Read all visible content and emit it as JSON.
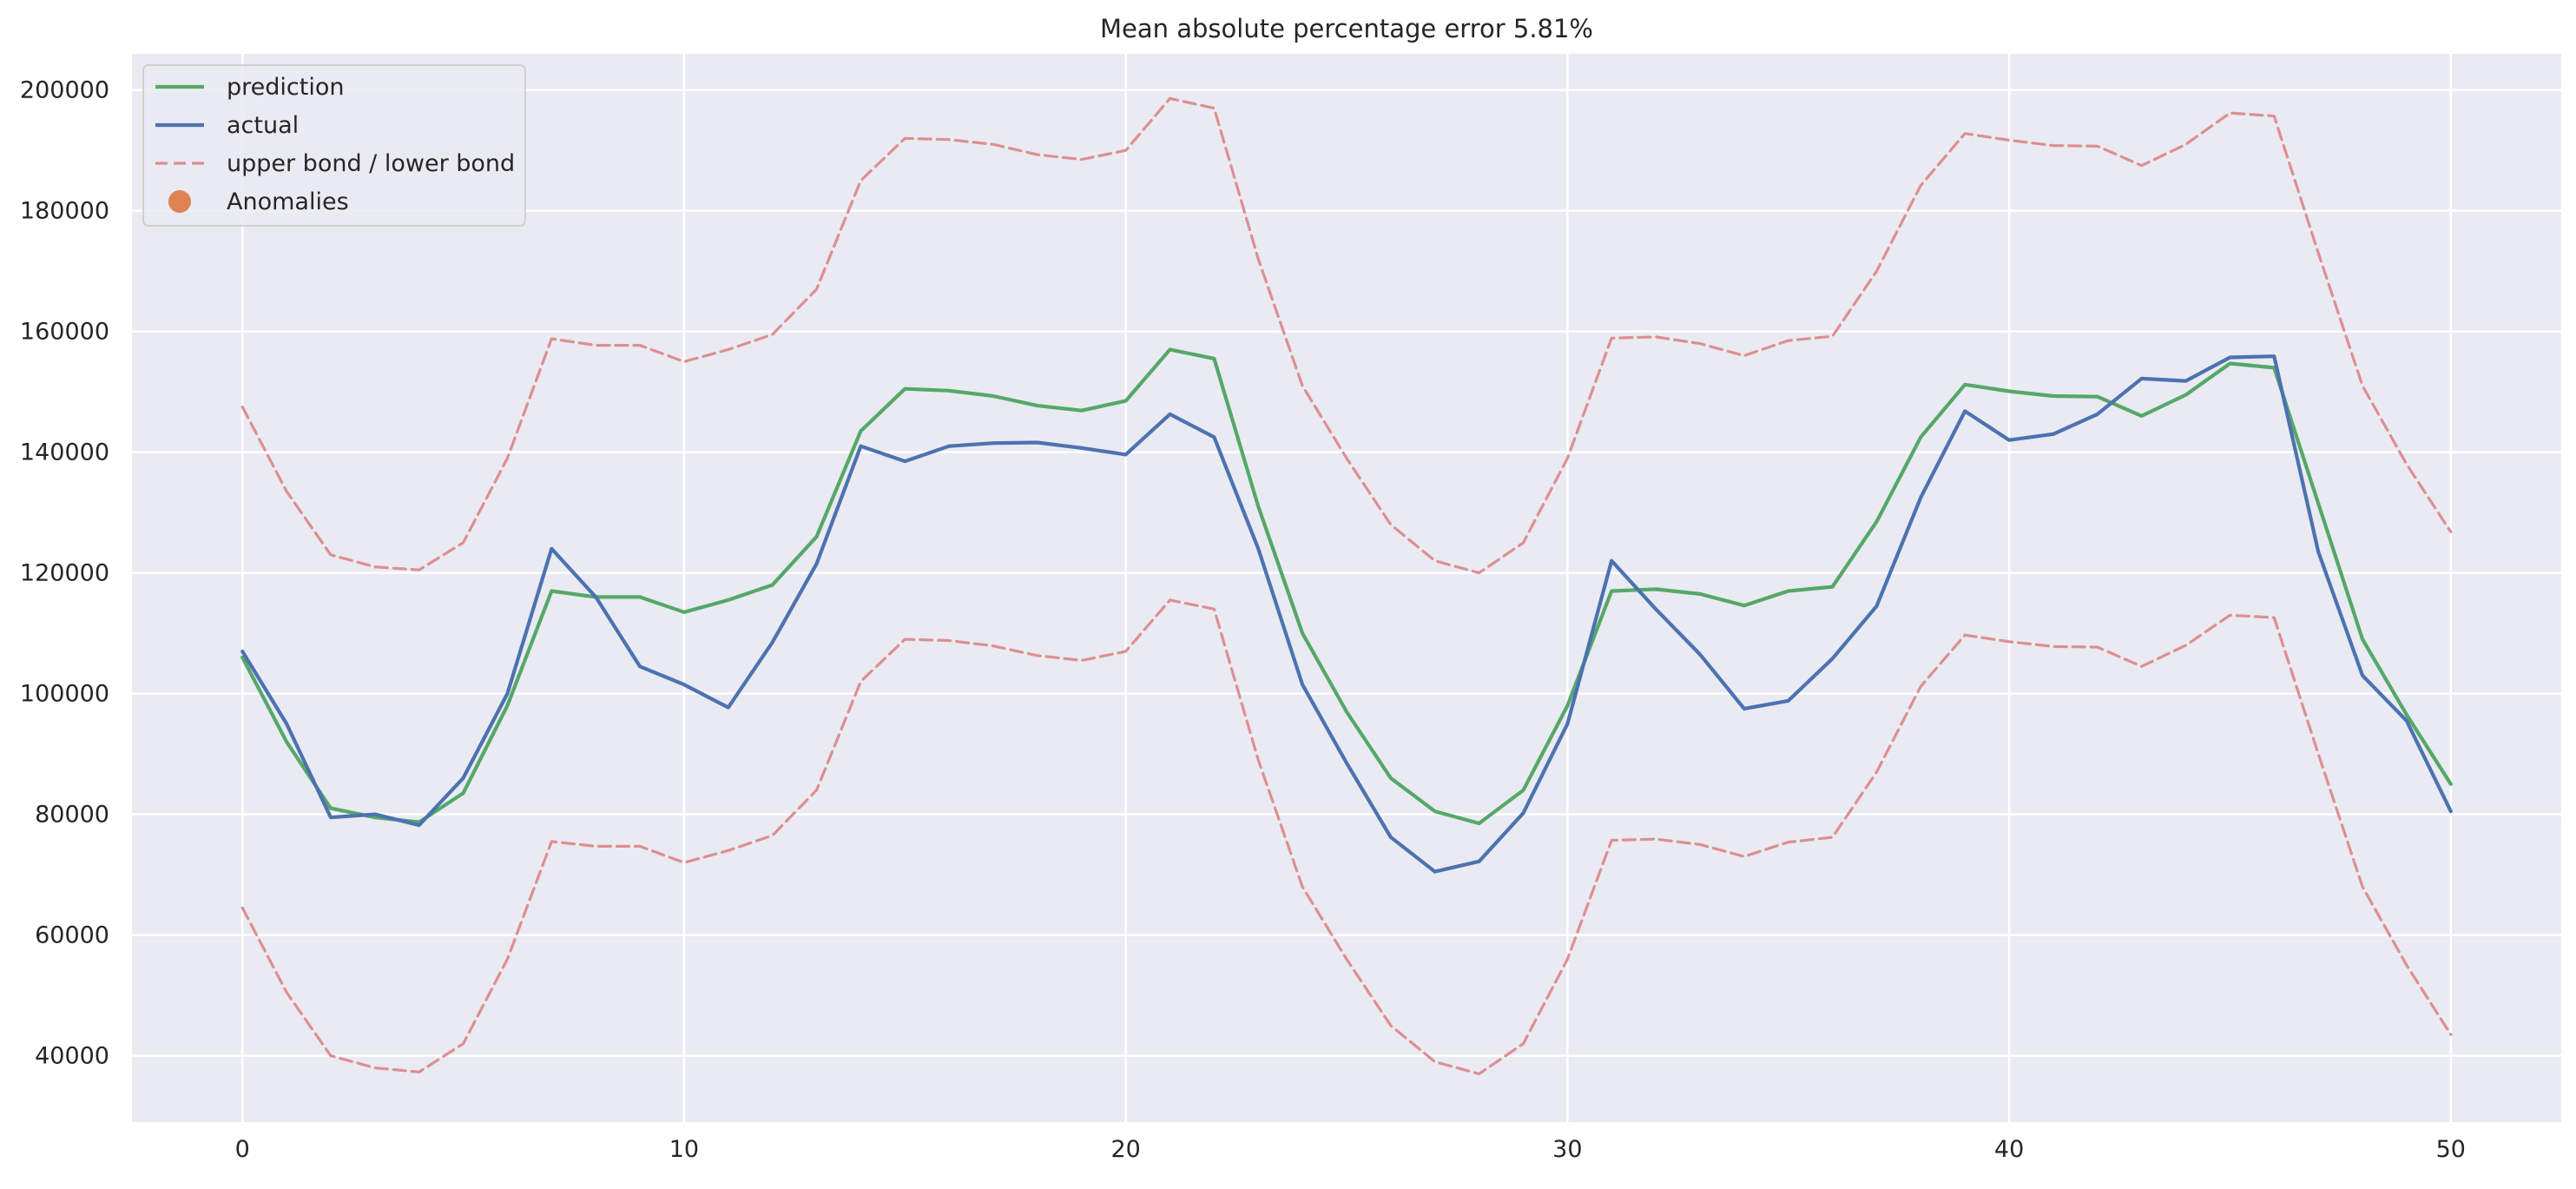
{
  "chart_data": {
    "type": "line",
    "title": "Mean absolute percentage error 5.81%",
    "xlabel": "",
    "ylabel": "",
    "xlim": [
      -2.5,
      52.5
    ],
    "ylim": [
      29000,
      206000
    ],
    "grid": true,
    "legend_position": "top-left",
    "x_ticks": [
      0,
      10,
      20,
      30,
      40,
      50
    ],
    "y_ticks": [
      40000,
      60000,
      80000,
      100000,
      120000,
      140000,
      160000,
      180000,
      200000
    ],
    "x": [
      0,
      1,
      2,
      3,
      4,
      5,
      6,
      7,
      8,
      9,
      10,
      11,
      12,
      13,
      14,
      15,
      16,
      17,
      18,
      19,
      20,
      21,
      22,
      23,
      24,
      25,
      26,
      27,
      28,
      29,
      30,
      31,
      32,
      33,
      34,
      35,
      36,
      37,
      38,
      39,
      40,
      41,
      42,
      43,
      44,
      45,
      46,
      47,
      48,
      49,
      50
    ],
    "series": [
      {
        "name": "prediction",
        "color": "#55a868",
        "style": "solid",
        "values": [
          106000,
          92000,
          81000,
          79500,
          78700,
          83500,
          98000,
          117000,
          116000,
          116000,
          113500,
          115500,
          118000,
          126000,
          143500,
          150500,
          150200,
          149300,
          147700,
          146900,
          148500,
          157000,
          155500,
          131000,
          110000,
          97000,
          86000,
          80500,
          78500,
          84000,
          98000,
          117000,
          117300,
          116500,
          114600,
          117000,
          117700,
          128500,
          142500,
          151200,
          150100,
          149300,
          149200,
          146000,
          149500,
          154700,
          154000,
          131500,
          109000,
          96500,
          85000
        ]
      },
      {
        "name": "actual",
        "color": "#4c72b0",
        "style": "solid",
        "values": [
          107000,
          95000,
          79500,
          80000,
          78200,
          86000,
          100000,
          124000,
          116000,
          104500,
          101500,
          97700,
          108500,
          121500,
          141000,
          138500,
          141000,
          141500,
          141600,
          140700,
          139600,
          146300,
          142500,
          124000,
          101500,
          88500,
          76200,
          70500,
          72200,
          80200,
          95000,
          122000,
          114000,
          106500,
          97500,
          98800,
          105800,
          114500,
          132500,
          146800,
          142000,
          143000,
          146300,
          152200,
          151800,
          155700,
          155900,
          123500,
          103000,
          95500,
          80500
        ]
      },
      {
        "name": "upper bond / lower bond",
        "color": "#dd8f91",
        "style": "dashed",
        "values": [
          147500,
          133500,
          123000,
          121000,
          120500,
          125000,
          139000,
          158800,
          157700,
          157700,
          155000,
          157000,
          159500,
          167000,
          185000,
          192000,
          191800,
          191000,
          189300,
          188500,
          190000,
          198600,
          197000,
          172000,
          151000,
          139000,
          128000,
          122000,
          120000,
          125000,
          139000,
          158900,
          159100,
          158000,
          156000,
          158500,
          159200,
          170000,
          184200,
          192800,
          191700,
          190800,
          190700,
          187500,
          191000,
          196200,
          195700,
          173000,
          151000,
          138000,
          126800
        ]
      },
      {
        "name": "lower bond",
        "color": "#dd8f91",
        "style": "dashed",
        "values": [
          64500,
          50500,
          40000,
          38000,
          37300,
          42000,
          56000,
          75500,
          74700,
          74700,
          72000,
          74000,
          76500,
          84000,
          102000,
          109000,
          108800,
          107900,
          106300,
          105500,
          107000,
          115500,
          114000,
          89000,
          68000,
          56000,
          45000,
          39000,
          37000,
          42000,
          56000,
          75700,
          75900,
          75000,
          73000,
          75400,
          76200,
          87000,
          101200,
          109700,
          108600,
          107800,
          107700,
          104500,
          108000,
          113000,
          112600,
          90000,
          68000,
          55000,
          43500
        ]
      }
    ],
    "legend": [
      {
        "label": "prediction",
        "color": "#55a868",
        "kind": "line"
      },
      {
        "label": "actual",
        "color": "#4c72b0",
        "kind": "line"
      },
      {
        "label": "upper bond / lower bond",
        "color": "#dd8f91",
        "kind": "dashed"
      },
      {
        "label": "Anomalies",
        "color": "#dd8452",
        "kind": "marker"
      }
    ],
    "colors": {
      "background": "#eaeaf2",
      "grid": "#ffffff",
      "text": "#262626"
    }
  }
}
